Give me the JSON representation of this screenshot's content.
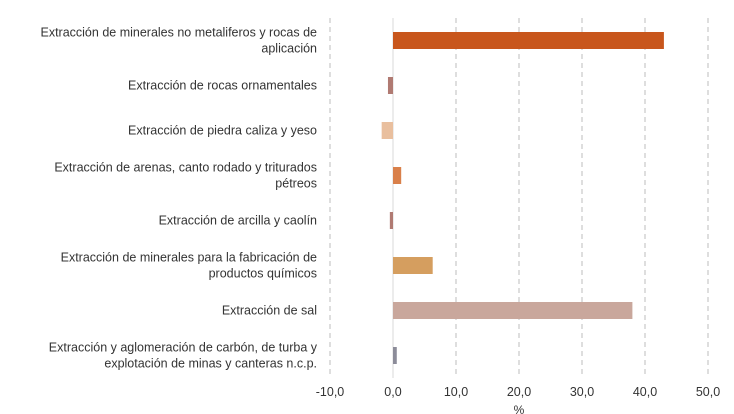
{
  "chart_data": {
    "type": "bar",
    "orientation": "horizontal",
    "categories": [
      [
        "Extracción de minerales no metaliferos y rocas de",
        "aplicación"
      ],
      [
        "Extracción de rocas ornamentales"
      ],
      [
        "Extracción de piedra caliza y yeso"
      ],
      [
        "Extracción de arenas, canto rodado y triturados",
        "pétreos"
      ],
      [
        "Extracción de arcilla y caolín"
      ],
      [
        "Extracción de minerales para la fabricación de",
        "productos químicos"
      ],
      [
        "Extracción de sal"
      ],
      [
        "Extracción y aglomeración de carbón, de turba y",
        "explotación de minas y canteras n.c.p."
      ]
    ],
    "values": [
      43.0,
      -0.8,
      -1.8,
      1.3,
      -0.5,
      6.3,
      38.0,
      0.6
    ],
    "colors": [
      "#c8561c",
      "#b07a72",
      "#e9bf9e",
      "#d9804a",
      "#b07a72",
      "#d59e5f",
      "#c9a79c",
      "#8c8c99"
    ],
    "x_ticks": [
      -10,
      0,
      10,
      20,
      30,
      40,
      50
    ],
    "x_tick_labels": [
      "-10,0",
      "0,0",
      "10,0",
      "20,0",
      "30,0",
      "40,0",
      "50,0"
    ],
    "xlim": [
      -10,
      50
    ],
    "xlabel": "%",
    "title": "",
    "grid": "vertical-dashed",
    "legend": "none"
  }
}
